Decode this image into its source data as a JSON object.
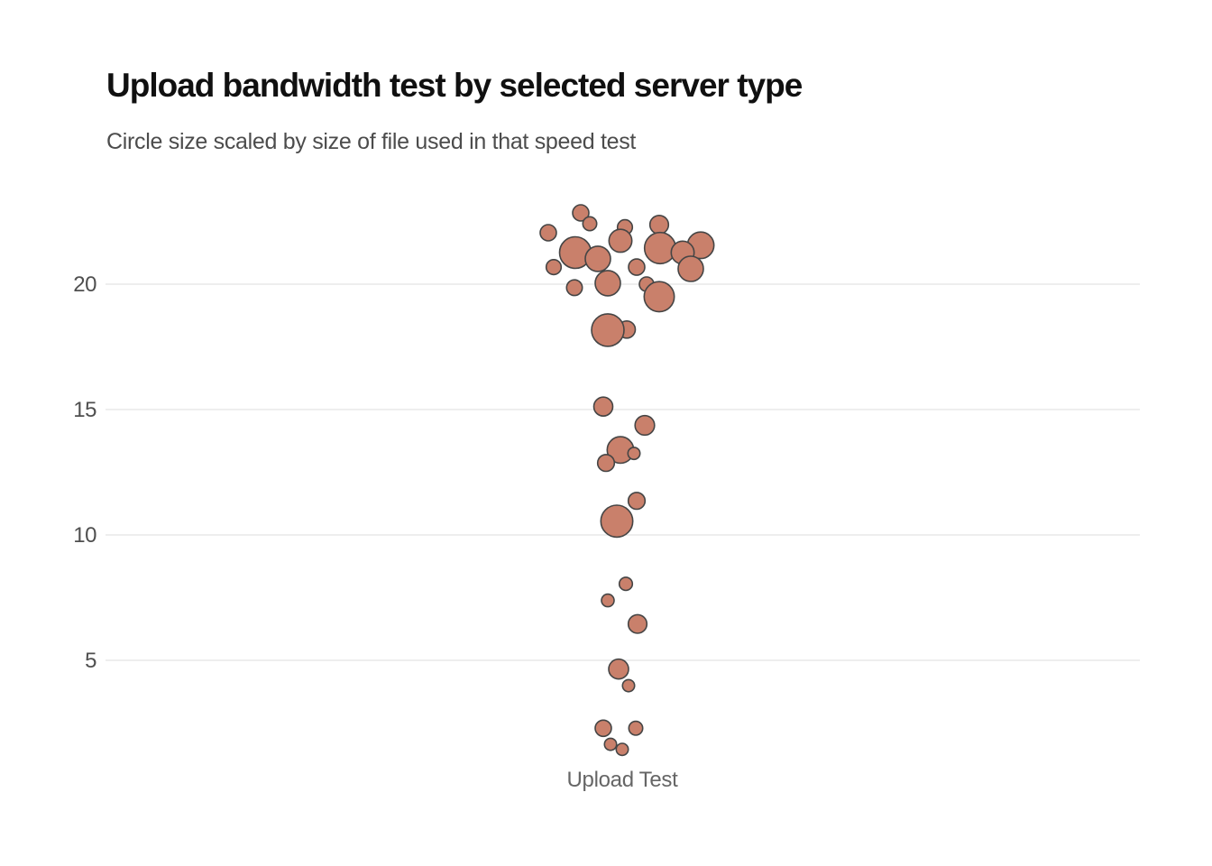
{
  "header": {
    "title": "Upload bandwidth test by selected server type",
    "subtitle": "Circle size scaled by size of file used in that speed test"
  },
  "chart_data": {
    "type": "scatter",
    "variant": "bubble-strip-plot",
    "title": "Upload bandwidth test by selected server type",
    "subtitle": "Circle size scaled by size of file used in that speed test",
    "x_categories": [
      "Upload Test"
    ],
    "xlabel": "",
    "ylabel": "",
    "y_ticks": [
      5,
      10,
      15,
      20
    ],
    "ylim": [
      0,
      23.5
    ],
    "grid": "horizontal",
    "legend": "none",
    "size_encoding": "circle radius = file size used in speed test",
    "colors": {
      "bubble_fill": "#c9806b",
      "bubble_stroke": "#454545",
      "gridline": "#dcdcdc",
      "tick_label": "#4f4f4f",
      "category_label": "#666666",
      "title": "#101010",
      "subtitle": "#4c4c4c"
    },
    "points": [
      {
        "value": 22.84,
        "x_offset": -46,
        "radius": 9
      },
      {
        "value": 22.41,
        "x_offset": -36,
        "radius": 7.7
      },
      {
        "value": 22.05,
        "x_offset": -82,
        "radius": 9
      },
      {
        "value": 22.37,
        "x_offset": 41,
        "radius": 10.3
      },
      {
        "value": 22.27,
        "x_offset": 3,
        "radius": 8.3
      },
      {
        "value": 21.73,
        "x_offset": -2,
        "radius": 12.7
      },
      {
        "value": 21.55,
        "x_offset": 87,
        "radius": 14.7
      },
      {
        "value": 21.44,
        "x_offset": 42,
        "radius": 17.3
      },
      {
        "value": 21.26,
        "x_offset": -52,
        "radius": 17.5
      },
      {
        "value": 21.26,
        "x_offset": 67,
        "radius": 12.7
      },
      {
        "value": 21.01,
        "x_offset": -27,
        "radius": 14
      },
      {
        "value": 20.68,
        "x_offset": -76,
        "radius": 8.3
      },
      {
        "value": 20.68,
        "x_offset": 16,
        "radius": 9
      },
      {
        "value": 20.61,
        "x_offset": 76,
        "radius": 14
      },
      {
        "value": 20.04,
        "x_offset": -16,
        "radius": 14
      },
      {
        "value": 20.0,
        "x_offset": 27,
        "radius": 8
      },
      {
        "value": 19.86,
        "x_offset": -53,
        "radius": 8.7
      },
      {
        "value": 19.5,
        "x_offset": 41,
        "radius": 16.7
      },
      {
        "value": 18.19,
        "x_offset": 5,
        "radius": 9.5
      },
      {
        "value": 18.17,
        "x_offset": -16,
        "radius": 18
      },
      {
        "value": 15.12,
        "x_offset": -21,
        "radius": 10.5
      },
      {
        "value": 14.37,
        "x_offset": 25,
        "radius": 10.8
      },
      {
        "value": 13.39,
        "x_offset": -2,
        "radius": 14.7
      },
      {
        "value": 13.25,
        "x_offset": 13,
        "radius": 6.7
      },
      {
        "value": 12.87,
        "x_offset": -18,
        "radius": 9.3
      },
      {
        "value": 11.36,
        "x_offset": 16,
        "radius": 9.3
      },
      {
        "value": 10.55,
        "x_offset": -6,
        "radius": 17.7
      },
      {
        "value": 8.05,
        "x_offset": 4,
        "radius": 7.3
      },
      {
        "value": 7.39,
        "x_offset": -16,
        "radius": 7
      },
      {
        "value": 6.45,
        "x_offset": 17,
        "radius": 10.3
      },
      {
        "value": 4.65,
        "x_offset": -4,
        "radius": 11
      },
      {
        "value": 3.99,
        "x_offset": 7,
        "radius": 6.7
      },
      {
        "value": 2.29,
        "x_offset": -21,
        "radius": 9
      },
      {
        "value": 2.29,
        "x_offset": 15,
        "radius": 7.7
      },
      {
        "value": 1.65,
        "x_offset": -13,
        "radius": 6.7
      },
      {
        "value": 1.45,
        "x_offset": 0,
        "radius": 6.7
      }
    ]
  }
}
